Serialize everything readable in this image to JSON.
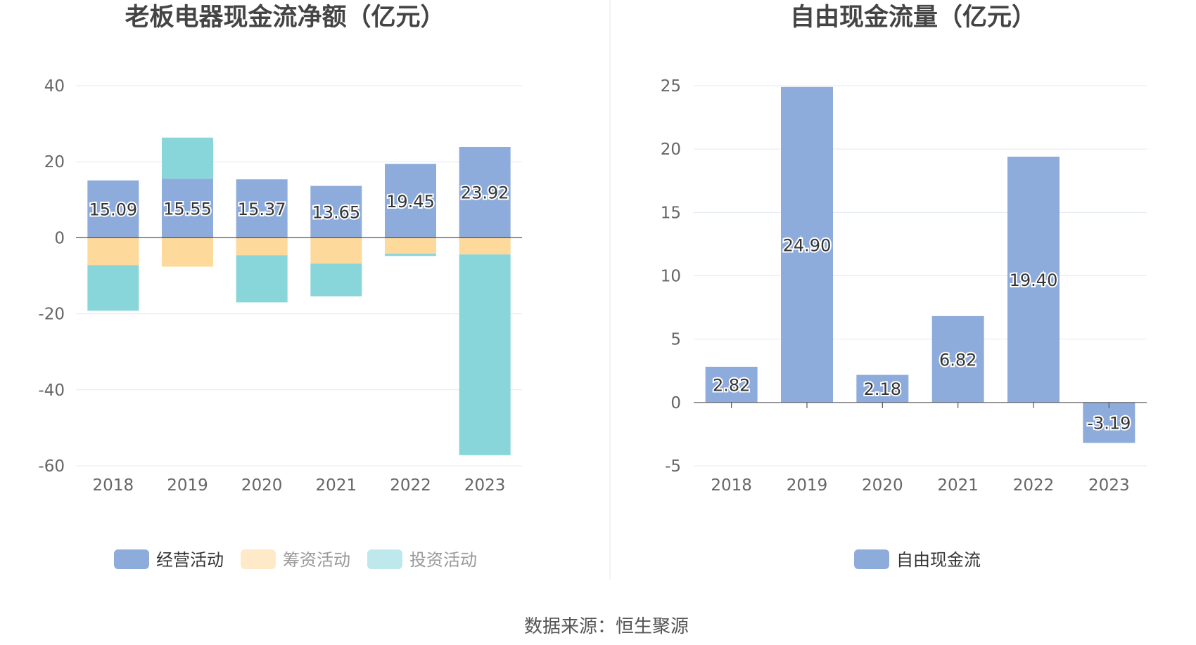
{
  "source": "数据来源：恒生聚源",
  "colors": {
    "operating": "#8eacdb",
    "financing": "#fdd99b",
    "investing": "#88d6da",
    "free_cash_flow": "#8eacdb",
    "grid": "#e3e8f3",
    "axis": "#555555",
    "divider": "#eeeeee"
  },
  "chart_data": [
    {
      "type": "bar",
      "stacked": true,
      "title": "老板电器现金流净额（亿元）",
      "categories": [
        "2018",
        "2019",
        "2020",
        "2021",
        "2022",
        "2023"
      ],
      "ylim": [
        -60,
        40
      ],
      "yticks": [
        40,
        20,
        0,
        -20,
        -40,
        -60
      ],
      "grid": true,
      "legend_position": "bottom",
      "series": [
        {
          "name": "经营活动",
          "values": [
            15.09,
            15.55,
            15.37,
            13.65,
            19.45,
            23.92
          ],
          "labels": [
            "15.09",
            "15.55",
            "15.37",
            "13.65",
            "19.45",
            "23.92"
          ],
          "active": true
        },
        {
          "name": "筹资活动",
          "values": [
            -7.2,
            -7.6,
            -4.6,
            -6.8,
            -4.2,
            -4.4
          ],
          "active": false
        },
        {
          "name": "投资活动",
          "values": [
            -12.0,
            10.8,
            -12.4,
            -8.6,
            -0.6,
            -52.8
          ],
          "active": false
        }
      ]
    },
    {
      "type": "bar",
      "title": "自由现金流量（亿元）",
      "categories": [
        "2018",
        "2019",
        "2020",
        "2021",
        "2022",
        "2023"
      ],
      "ylim": [
        -5,
        25
      ],
      "yticks": [
        25,
        20,
        15,
        10,
        5,
        0,
        -5
      ],
      "grid": true,
      "legend_position": "bottom",
      "series": [
        {
          "name": "自由现金流",
          "values": [
            2.82,
            24.9,
            2.18,
            6.82,
            19.4,
            -3.19
          ],
          "labels": [
            "2.82",
            "24.90",
            "2.18",
            "6.82",
            "19.40",
            "-3.19"
          ],
          "active": true
        }
      ]
    }
  ]
}
